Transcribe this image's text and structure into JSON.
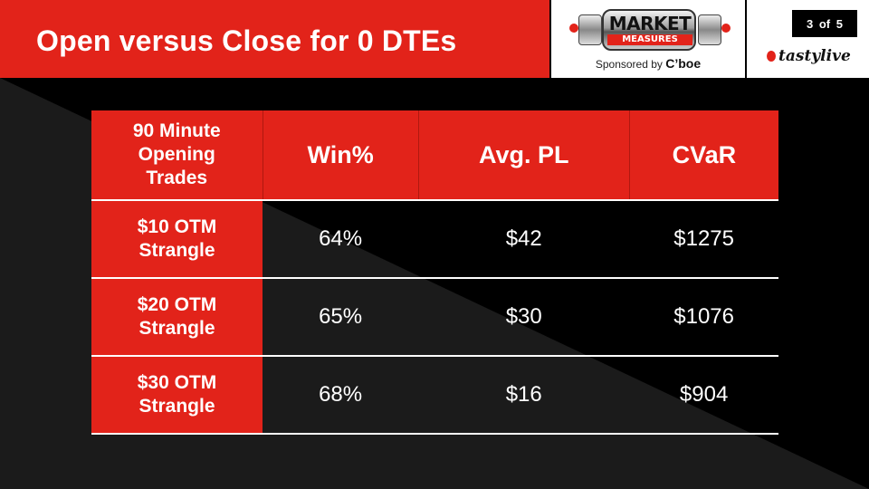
{
  "header": {
    "title": "Open versus Close for 0 DTEs"
  },
  "logo": {
    "line1": "MARKET",
    "line2": "MEASURES",
    "sponsor_prefix": "Sponsored by",
    "sponsor_name": "C’boe"
  },
  "page": {
    "indicator": "3 of 5",
    "brand": "tastylive"
  },
  "table": {
    "corner_header": [
      "90 Minute",
      "Opening",
      "Trades"
    ],
    "columns": [
      "Win%",
      "Avg. PL",
      "CVaR"
    ],
    "rows": [
      {
        "label": [
          "$10 OTM",
          "Strangle"
        ],
        "cells": [
          "64%",
          "$42",
          "$1275"
        ]
      },
      {
        "label": [
          "$20 OTM",
          "Strangle"
        ],
        "cells": [
          "65%",
          "$30",
          "$1076"
        ]
      },
      {
        "label": [
          "$30 OTM",
          "Strangle"
        ],
        "cells": [
          "68%",
          "$16",
          "$904"
        ]
      }
    ]
  },
  "colors": {
    "accent": "#e2231a",
    "dark": "#1a1a1a",
    "black": "#000000"
  }
}
